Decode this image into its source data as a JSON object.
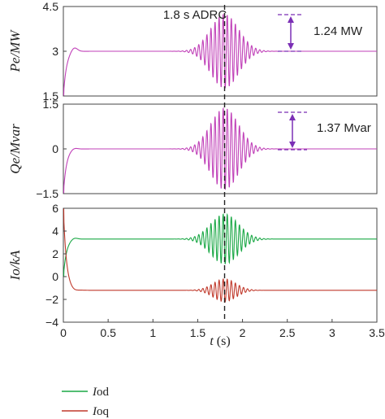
{
  "colors": {
    "pe": "#c040b8",
    "qe": "#c040b8",
    "iod": "#1aa845",
    "ioq": "#c0392b",
    "annotation": "#7b2fb5",
    "frame": "#444444",
    "event": "#222222"
  },
  "chart_data": [
    {
      "type": "line",
      "panel": "top",
      "ylabel": "Pe/MW",
      "ylim": [
        1.5,
        4.5
      ],
      "yticks": [
        "1.5",
        "3",
        "4.5"
      ],
      "xlim": [
        0,
        3.5
      ],
      "series": [
        {
          "key": "pe",
          "color": "#c040b8",
          "start": 1.5,
          "steady": 3.0,
          "overshoot": 3.15,
          "osc_center": 1.8,
          "osc_amplitude": 1.24,
          "osc_width": 0.22,
          "osc_freq": 22
        }
      ],
      "annotations": {
        "event_label": "1.8 s ADRC",
        "event_x": 1.8,
        "delta_label": "1.24 MW"
      }
    },
    {
      "type": "line",
      "panel": "middle",
      "ylabel": "Qe/Mvar",
      "ylim": [
        -1.5,
        1.5
      ],
      "yticks": [
        "−1.5",
        "0",
        "1.5"
      ],
      "xlim": [
        0,
        3.5
      ],
      "series": [
        {
          "key": "qe",
          "color": "#c040b8",
          "start": -1.5,
          "steady": 0.0,
          "overshoot": 0.05,
          "osc_center": 1.8,
          "osc_amplitude": 1.37,
          "osc_width": 0.22,
          "osc_freq": 22
        }
      ],
      "annotations": {
        "event_x": 1.8,
        "delta_label": "1.37 Mvar"
      }
    },
    {
      "type": "line",
      "panel": "bottom",
      "ylabel": "Io/kA",
      "ylim": [
        -4,
        6
      ],
      "yticks": [
        "−4",
        "−2",
        "0",
        "2",
        "4",
        "6"
      ],
      "xlim": [
        0,
        3.5
      ],
      "xticks": [
        "0",
        "0.5",
        "1",
        "1.5",
        "2",
        "2.5",
        "3",
        "3.5"
      ],
      "xlabel": "t (s)",
      "series": [
        {
          "key": "iod",
          "name": "Iod",
          "color": "#1aa845",
          "start": 0.0,
          "steady": 3.3,
          "overshoot": 3.45,
          "osc_center": 1.8,
          "osc_amplitude": 2.2,
          "osc_width": 0.22,
          "osc_freq": 22
        },
        {
          "key": "ioq",
          "name": "Ioq",
          "color": "#c0392b",
          "start": 6.0,
          "steady": -1.2,
          "overshoot": -1.3,
          "osc_center": 1.8,
          "osc_amplitude": 1.0,
          "osc_width": 0.18,
          "osc_freq": 22
        }
      ],
      "annotations": {
        "event_x": 1.8
      }
    }
  ],
  "legend": {
    "iod_prefix": "I",
    "iod_suffix": "od",
    "ioq_prefix": "I",
    "ioq_suffix": "oq"
  },
  "labels": {
    "event": "1.8 s ADRC",
    "pe_delta": "1.24 MW",
    "qe_delta": "1.37 Mvar",
    "xlabel_t": "t",
    "xlabel_unit": " (s)",
    "pe_ylabel": "Pe/MW",
    "qe_ylabel": "Qe/Mvar",
    "io_ylabel": "Io/kA"
  }
}
